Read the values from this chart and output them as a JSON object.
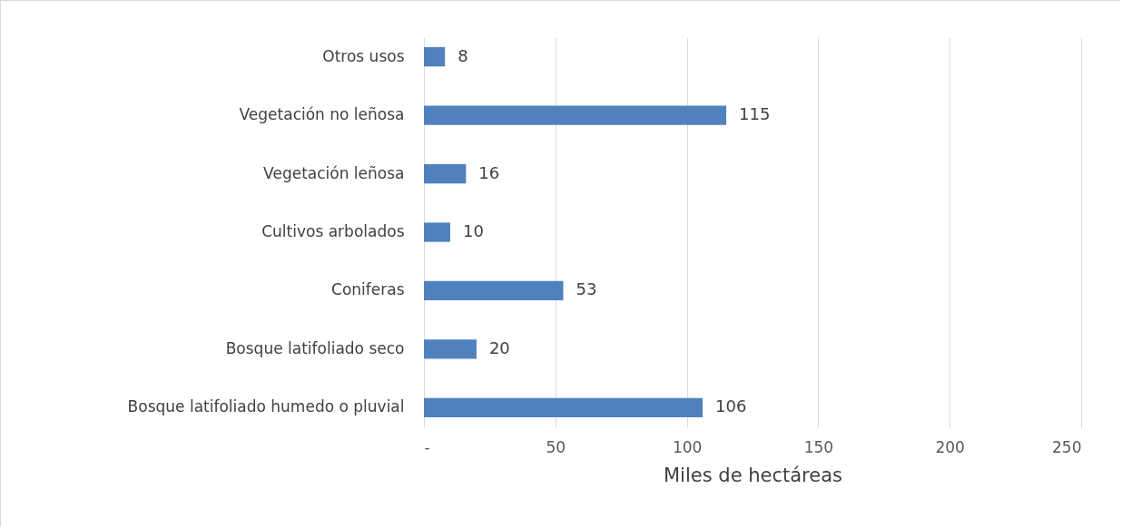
{
  "chart_data": {
    "type": "bar",
    "orientation": "horizontal",
    "xlabel": "Miles de hectáreas",
    "categories": [
      "Otros usos",
      "Vegetación no leñosa",
      "Vegetación leñosa",
      "Cultivos arbolados",
      "Coniferas",
      "Bosque latifoliado seco",
      "Bosque latifoliado humedo o pluvial"
    ],
    "values": [
      8,
      115,
      16,
      10,
      53,
      20,
      106
    ],
    "color": "#4f81bd",
    "xlim": [
      0,
      250
    ],
    "xticks": [
      {
        "value": 0,
        "label": "-"
      },
      50,
      100,
      150,
      200,
      250
    ],
    "grid": "x",
    "data_labels": true
  }
}
